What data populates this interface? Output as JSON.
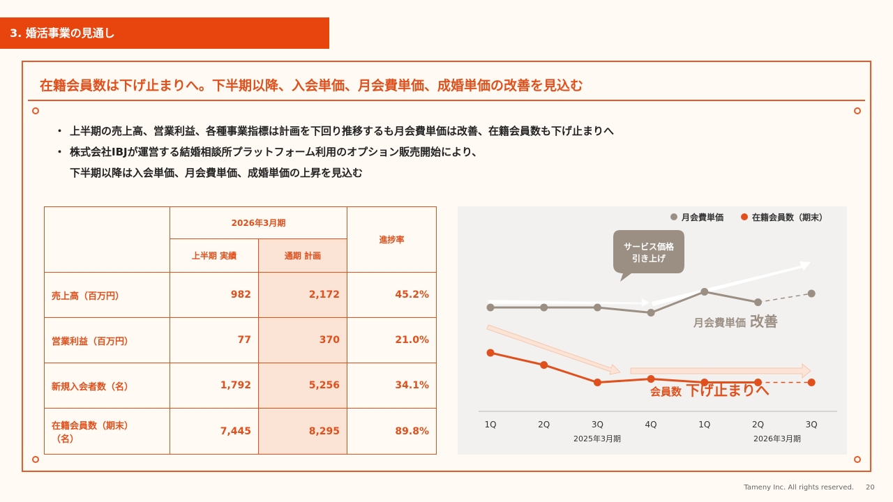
{
  "section": {
    "title": "3. 婚活事業の見通し"
  },
  "headline": "在籍会員数は下げ止まりへ。下半期以降、入会単価、月会費単価、成婚単価の改善を見込む",
  "bullets": [
    "上半期の売上高、営業利益、各種事業指標は計画を下回り推移するも月会費単価は改善、在籍会員数も下げ止まりへ",
    "株式会社IBJが運営する結婚相談所プラットフォーム利用のオプション販売開始により、",
    "下半期以降は入会単価、月会費単価、成婚単価の上昇を見込む"
  ],
  "bullet_mark": "・",
  "table": {
    "period_header": "2026年3月期",
    "col_actual": "上半期 実績",
    "col_plan": "通期 計画",
    "col_progress": "進捗率",
    "rows": [
      {
        "label": "売上高（百万円）",
        "actual": "982",
        "plan": "2,172",
        "progress": "45.2%"
      },
      {
        "label": "営業利益（百万円）",
        "actual": "77",
        "plan": "370",
        "progress": "21.0%"
      },
      {
        "label": "新規入会者数（名）",
        "actual": "1,792",
        "plan": "5,256",
        "progress": "34.1%"
      },
      {
        "label": "在籍会員数（期末）（名）",
        "label_line1": "在籍会員数（期末）",
        "label_line2": "（名）",
        "actual": "7,445",
        "plan": "8,295",
        "progress": "89.8%"
      }
    ]
  },
  "chart_data": {
    "type": "line",
    "categories": [
      "1Q",
      "2Q",
      "3Q",
      "4Q",
      "1Q",
      "2Q",
      "3Q"
    ],
    "period_labels": [
      "2025年3月期",
      "2026年3月期"
    ],
    "series": [
      {
        "name": "月会費単価",
        "color": "#9b8f84",
        "values": [
          0.58,
          0.58,
          0.58,
          0.55,
          0.67,
          0.61,
          0.66
        ],
        "forecast_from_index": 5
      },
      {
        "name": "在籍会員数（期末）",
        "color": "#e0501c",
        "values": [
          0.32,
          0.25,
          0.15,
          0.17,
          0.15,
          0.15,
          0.15
        ],
        "forecast_from_index": 5
      }
    ],
    "legend": [
      "月会費単価",
      "在籍会員数（期末）"
    ],
    "legend_position": "top-right",
    "callout": {
      "line1": "サービス価格",
      "line2": "引き上げ"
    },
    "annotation_price": {
      "prefix": "月会費単価",
      "emphasis": "改善"
    },
    "annotation_members": {
      "prefix": "会員数",
      "emphasis": "下げ止まりへ"
    }
  },
  "footer": {
    "copyright": "Tameny Inc. All rights reserved.",
    "page": "20"
  },
  "colors": {
    "accent": "#e8440e",
    "plan_fill": "#fbe3d6",
    "chart_bg": "#f2f1f0",
    "gray_series": "#9b8f84"
  }
}
